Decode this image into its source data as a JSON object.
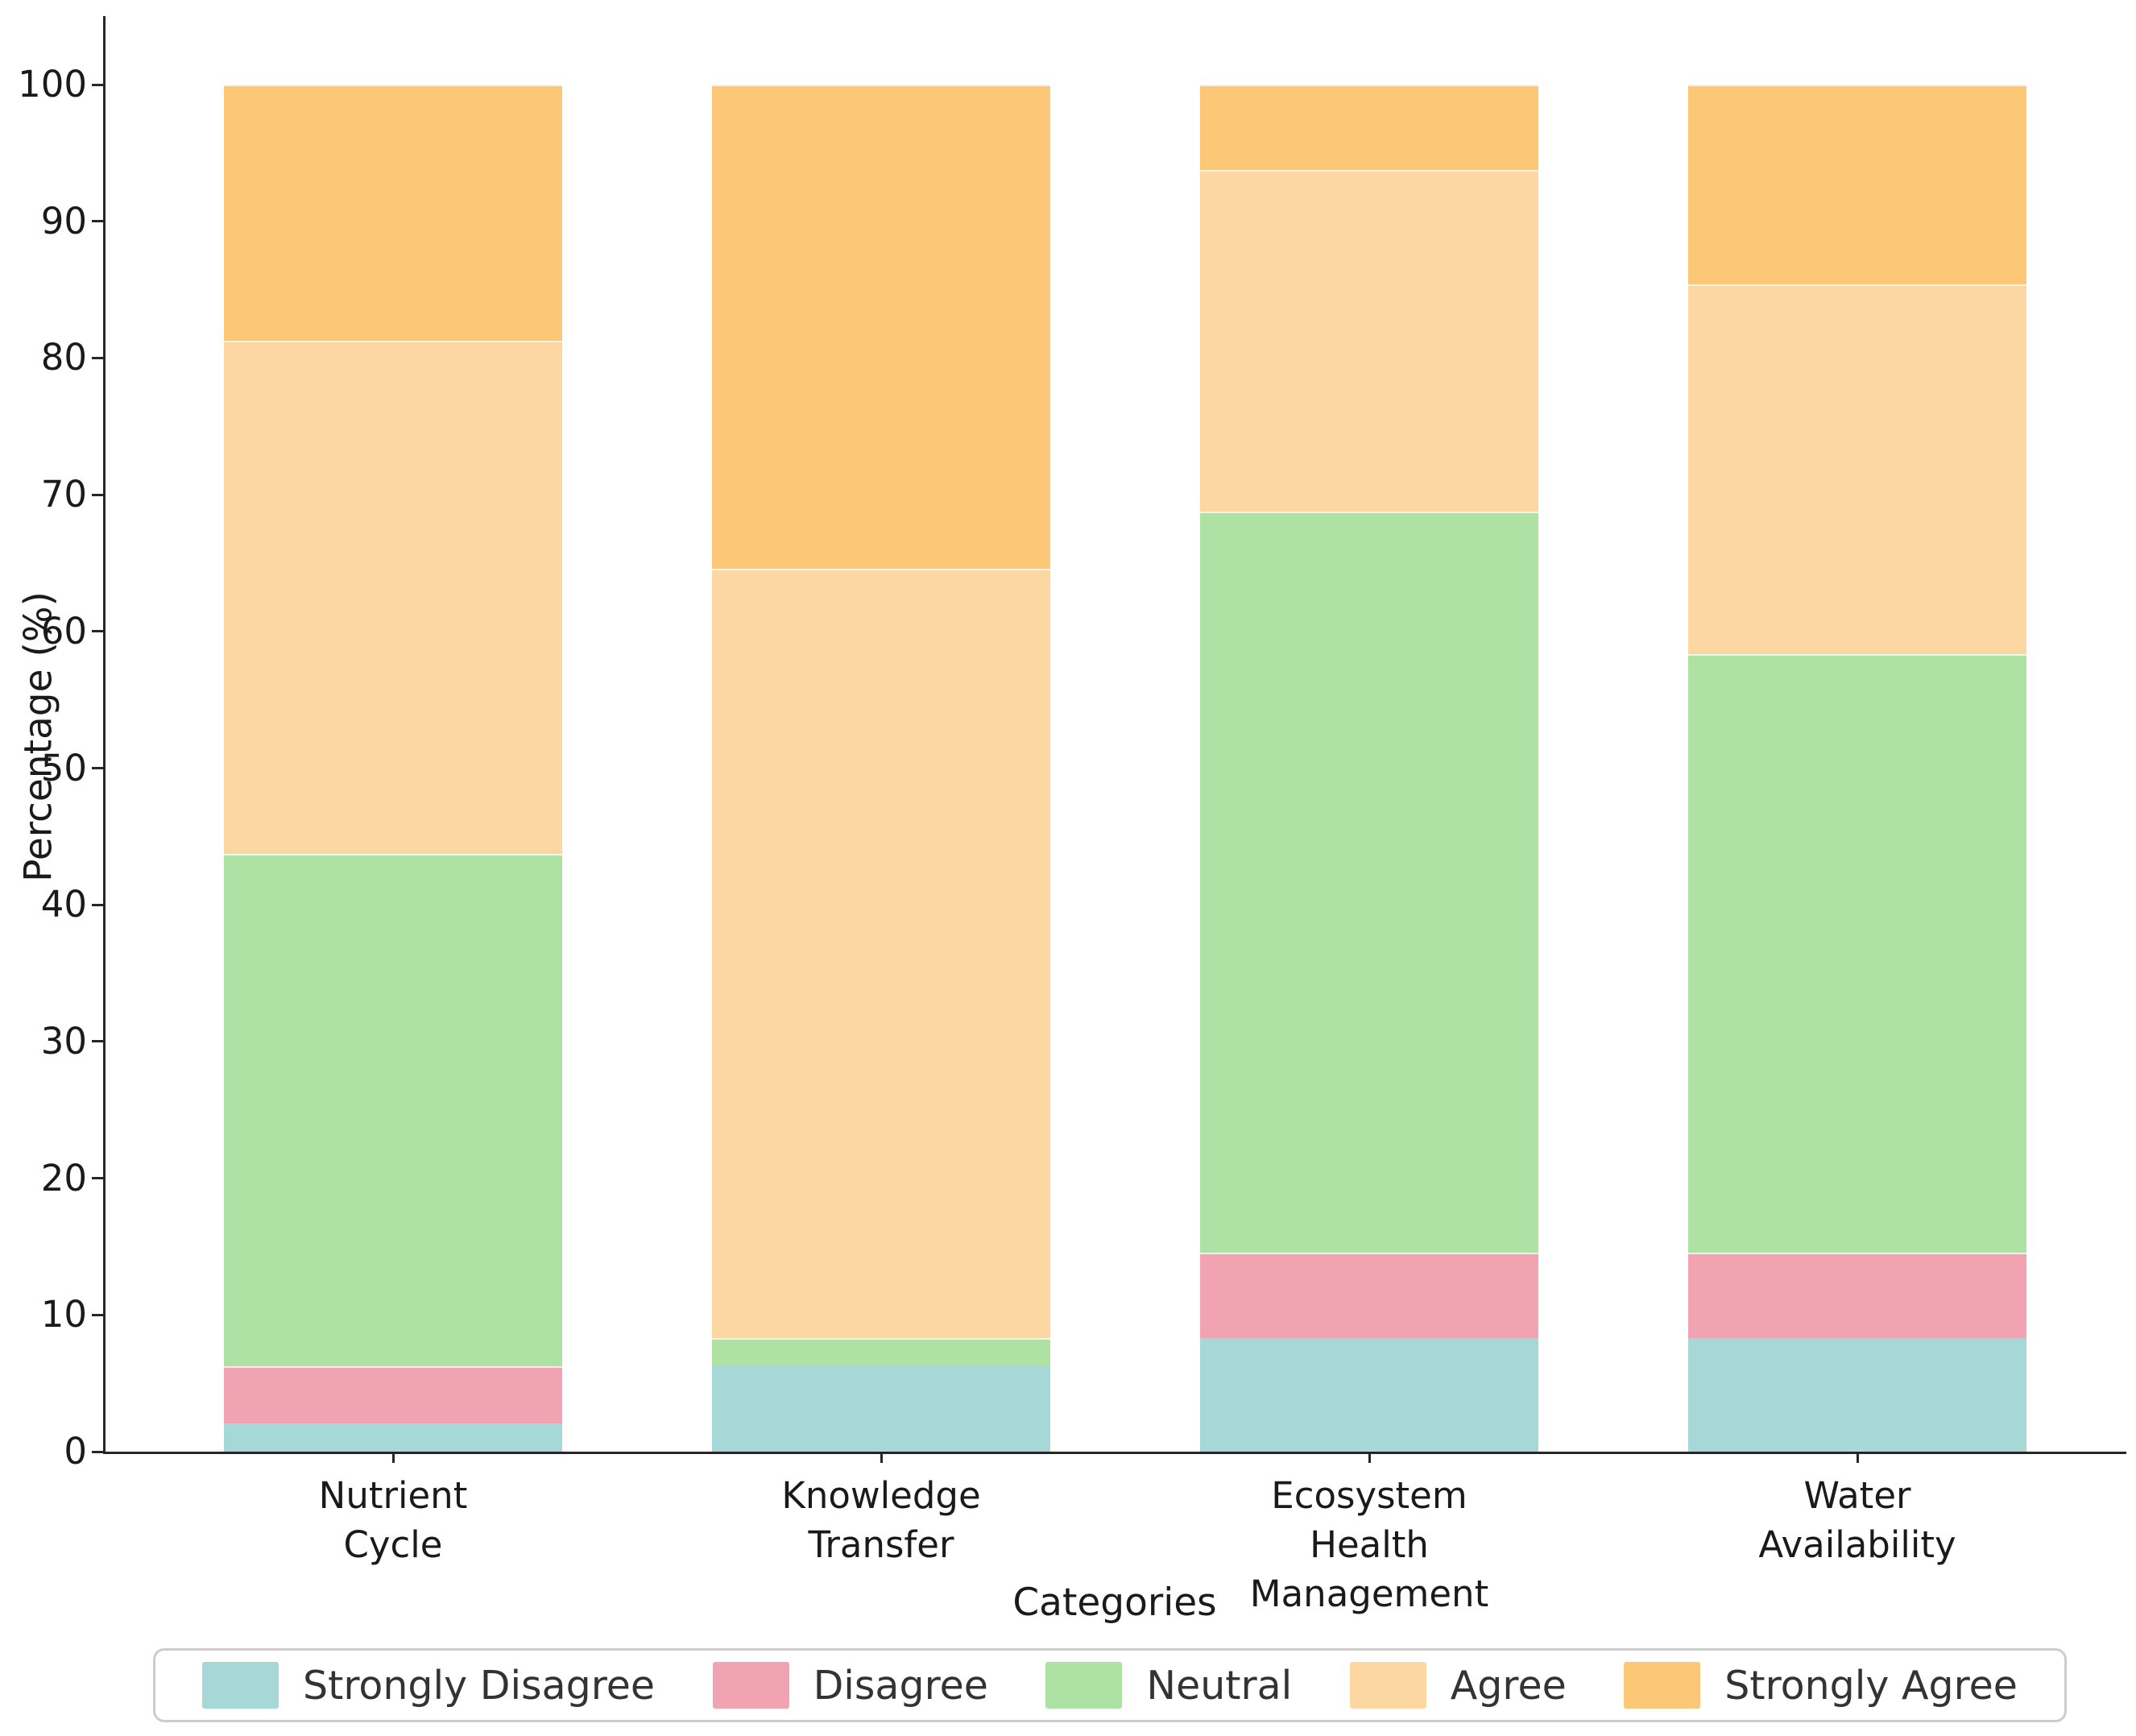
{
  "chart_data": {
    "type": "bar",
    "stacked": true,
    "orientation": "vertical",
    "title": "",
    "xlabel": "Categories",
    "ylabel": "Percentage (%)",
    "ylim": [
      0,
      100
    ],
    "yticks": [
      0,
      10,
      20,
      30,
      40,
      50,
      60,
      70,
      80,
      90,
      100
    ],
    "grid": false,
    "legend_position": "bottom",
    "categories": [
      "Nutrient Cycle",
      "Knowledge Transfer",
      "Ecosystem Health Management",
      "Water Availability"
    ],
    "category_label_lines": [
      [
        "Nutrient",
        "Cycle"
      ],
      [
        "Knowledge",
        "Transfer"
      ],
      [
        "Ecosystem",
        "Health",
        "Management"
      ],
      [
        "Water",
        "Availability"
      ]
    ],
    "series": [
      {
        "name": "Strongly Disagree",
        "color": "#a5d8d6",
        "values": [
          2.08,
          6.25,
          8.33,
          8.33
        ]
      },
      {
        "name": "Disagree",
        "color": "#f2a3b2",
        "values": [
          4.17,
          0.0,
          6.25,
          6.25
        ]
      },
      {
        "name": "Neutral",
        "color": "#aee2a5",
        "values": [
          37.5,
          2.08,
          54.17,
          43.75
        ]
      },
      {
        "name": "Agree",
        "color": "#fdd7a1",
        "values": [
          37.5,
          56.25,
          25.0,
          27.08
        ]
      },
      {
        "name": "Strongly Agree",
        "color": "#fcc878",
        "values": [
          18.75,
          35.42,
          6.25,
          14.58
        ]
      }
    ]
  },
  "colors": {
    "background": "#ffffff",
    "spine": "#262626",
    "tick_text": "#1a1a1a",
    "legend_border": "#cccccc",
    "legend_text": "#333333"
  },
  "layout_values": {
    "note": "percent values sum to 100 per category"
  }
}
